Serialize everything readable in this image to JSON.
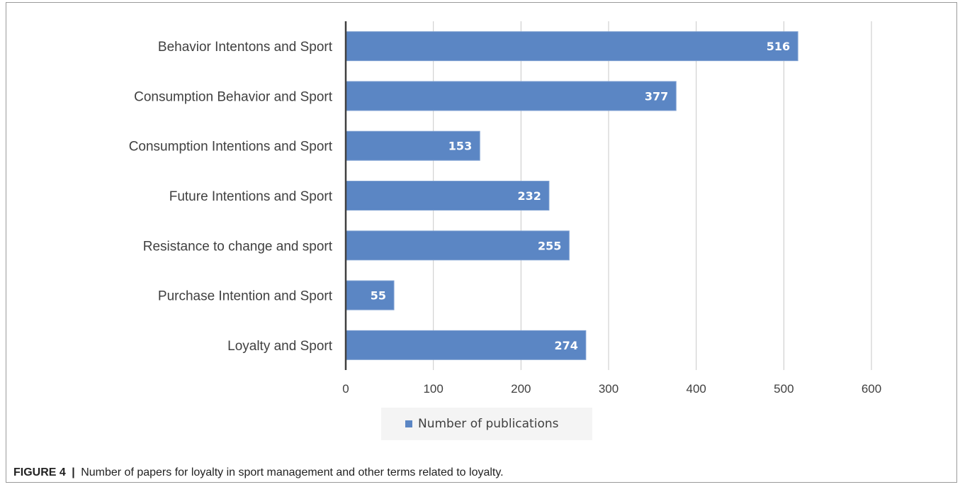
{
  "chart_data": {
    "type": "bar",
    "orientation": "horizontal",
    "categories": [
      "Behavior Intentons and Sport",
      "Consumption Behavior and Sport",
      "Consumption Intentions and Sport",
      "Future Intentions and Sport",
      "Resistance to change and sport",
      "Purchase Intention and Sport",
      "Loyalty and Sport"
    ],
    "series": [
      {
        "name": "Number of publications",
        "values": [
          516,
          377,
          153,
          232,
          255,
          55,
          274
        ]
      }
    ],
    "data_labels": [
      "516",
      "377",
      "153",
      "232",
      "255",
      "55",
      "274"
    ],
    "xlim": [
      0,
      600
    ],
    "xticks": [
      "0",
      "100",
      "200",
      "300",
      "400",
      "500",
      "600"
    ],
    "grid": true,
    "legend_position": "bottom",
    "bar_color": "#5b86c4"
  },
  "caption": {
    "figure_label": "FIGURE 4",
    "separator": "|",
    "text": "Number of papers for loyalty in sport management and other terms related to loyalty."
  }
}
